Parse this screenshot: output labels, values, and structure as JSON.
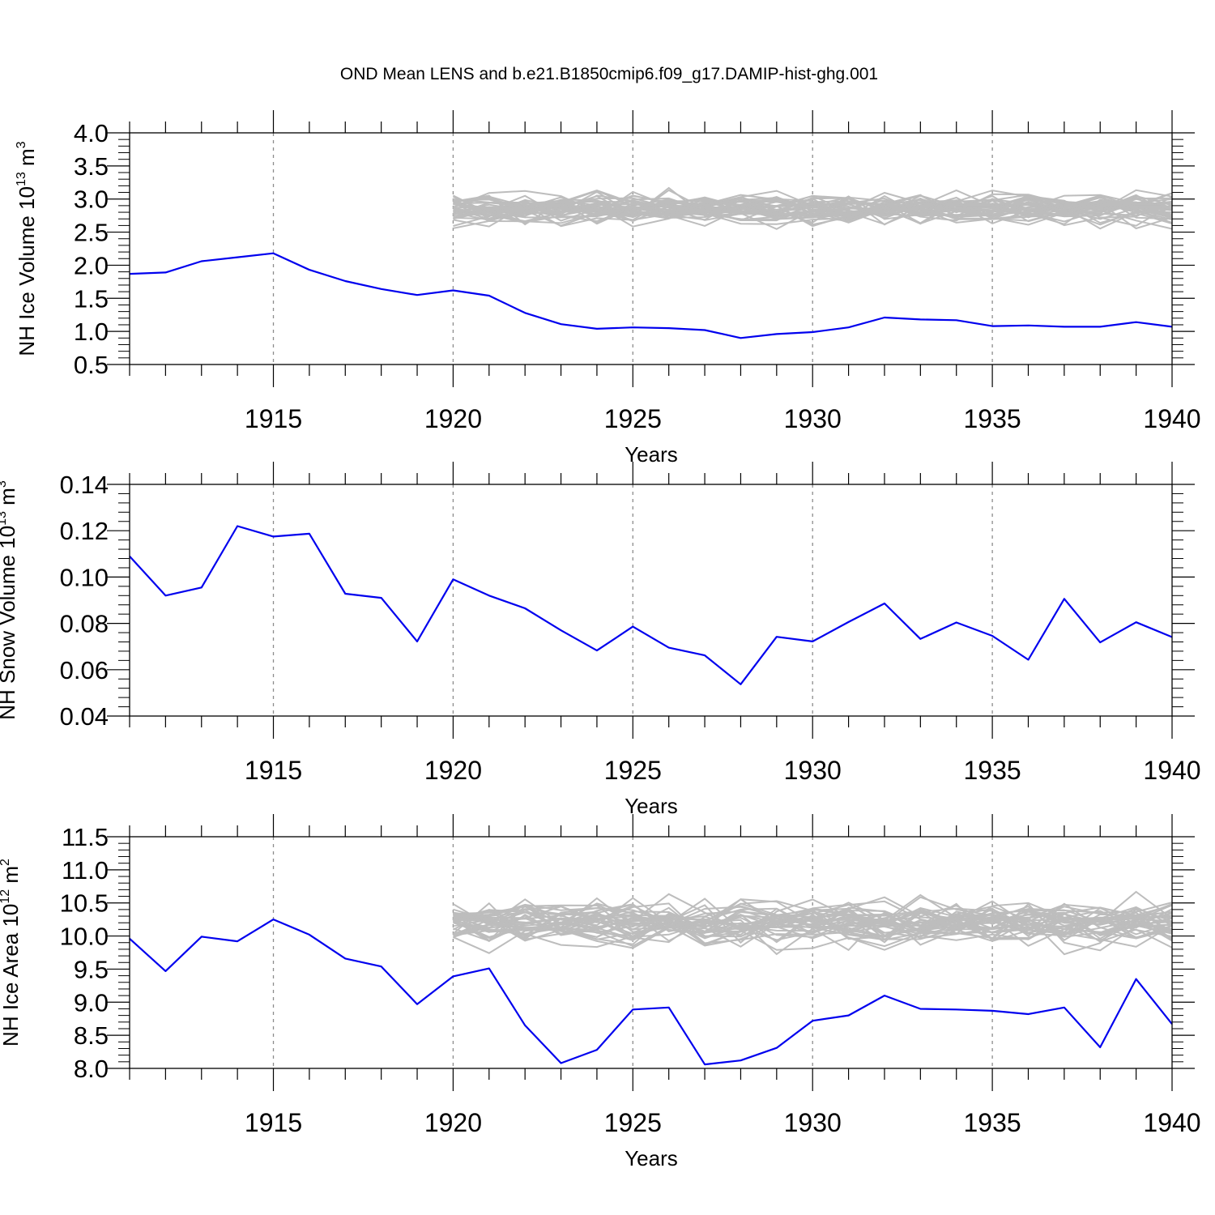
{
  "title": "OND Mean LENS and b.e21.B1850cmip6.f09_g17.DAMIP-hist-ghg.001",
  "colors": {
    "main_series": "#0000ee",
    "ensemble": "#bdbdbd",
    "frame": "#000000",
    "gridline": "#8c8c8c"
  },
  "chart_data": [
    {
      "type": "line",
      "title": "OND Mean LENS and b.e21.B1850cmip6.f09_g17.DAMIP-hist-ghg.001",
      "ylabel": {
        "text": "NH Ice Volume 10",
        "sup1": "13",
        "mid": " m",
        "sup2": "3"
      },
      "xlabel": "Years",
      "xlim": [
        1911,
        1940
      ],
      "ylim": [
        0.5,
        4.0
      ],
      "yticks": [
        0.5,
        1.0,
        1.5,
        2.0,
        2.5,
        3.0,
        3.5,
        4.0
      ],
      "ytick_labels": [
        "0.5",
        "1.0",
        "1.5",
        "2.0",
        "2.5",
        "3.0",
        "3.5",
        "4.0"
      ],
      "xticks": [
        1915,
        1920,
        1925,
        1930,
        1935,
        1940
      ],
      "xtick_labels": [
        "1915",
        "1920",
        "1925",
        "1930",
        "1935",
        "1940"
      ],
      "vertical_gridlines": [
        1915,
        1920,
        1925,
        1930,
        1935
      ],
      "ensemble_start": 1920,
      "ensemble_members": 40,
      "ensemble_mean": 2.85,
      "ensemble_spread": 0.2,
      "series": [
        {
          "name": "b.e21.B1850cmip6.f09_g17.DAMIP-hist-ghg.001",
          "x": [
            1911,
            1912,
            1913,
            1914,
            1915,
            1916,
            1917,
            1918,
            1919,
            1920,
            1921,
            1922,
            1923,
            1924,
            1925,
            1926,
            1927,
            1928,
            1929,
            1930,
            1931,
            1932,
            1933,
            1934,
            1935,
            1936,
            1937,
            1938,
            1939,
            1940
          ],
          "values": [
            1.87,
            1.89,
            2.06,
            2.12,
            2.18,
            1.93,
            1.76,
            1.64,
            1.55,
            1.62,
            1.54,
            1.28,
            1.11,
            1.04,
            1.06,
            1.05,
            1.02,
            0.9,
            0.96,
            0.99,
            1.06,
            1.21,
            1.18,
            1.17,
            1.08,
            1.09,
            1.07,
            1.07,
            1.14,
            1.07
          ]
        }
      ]
    },
    {
      "type": "line",
      "ylabel": {
        "text": "NH Snow Volume 10",
        "sup1": "13",
        "mid": " m",
        "sup2": "3"
      },
      "xlabel": "Years",
      "xlim": [
        1911,
        1940
      ],
      "ylim": [
        0.04,
        0.14
      ],
      "yticks": [
        0.04,
        0.06,
        0.08,
        0.1,
        0.12,
        0.14
      ],
      "ytick_labels": [
        "0.04",
        "0.06",
        "0.08",
        "0.10",
        "0.12",
        "0.14"
      ],
      "xticks": [
        1915,
        1920,
        1925,
        1930,
        1935,
        1940
      ],
      "xtick_labels": [
        "1915",
        "1920",
        "1925",
        "1930",
        "1935",
        "1940"
      ],
      "vertical_gridlines": [
        1915,
        1920,
        1925,
        1930,
        1935
      ],
      "series": [
        {
          "name": "b.e21.B1850cmip6.f09_g17.DAMIP-hist-ghg.001",
          "x": [
            1911,
            1912,
            1913,
            1914,
            1915,
            1916,
            1917,
            1918,
            1919,
            1920,
            1921,
            1922,
            1923,
            1924,
            1925,
            1926,
            1927,
            1928,
            1929,
            1930,
            1931,
            1932,
            1933,
            1934,
            1935,
            1936,
            1937,
            1938,
            1939,
            1940
          ],
          "values": [
            0.109,
            0.092,
            0.0955,
            0.122,
            0.1175,
            0.1187,
            0.0928,
            0.091,
            0.0722,
            0.099,
            0.092,
            0.0865,
            0.077,
            0.0683,
            0.0786,
            0.0695,
            0.0662,
            0.0537,
            0.0742,
            0.0722,
            0.0806,
            0.0886,
            0.0733,
            0.0804,
            0.0746,
            0.0643,
            0.0906,
            0.0718,
            0.0805,
            0.0741
          ]
        }
      ]
    },
    {
      "type": "line",
      "ylabel": {
        "text": "NH Ice Area 10",
        "sup1": "12",
        "mid": " m",
        "sup2": "2"
      },
      "xlabel": "Years",
      "xlim": [
        1911,
        1940
      ],
      "ylim": [
        8.0,
        11.5
      ],
      "yticks": [
        8.0,
        8.5,
        9.0,
        9.5,
        10.0,
        10.5,
        11.0,
        11.5
      ],
      "ytick_labels": [
        "8.0",
        "8.5",
        "9.0",
        "9.5",
        "10.0",
        "10.5",
        "11.0",
        "11.5"
      ],
      "xticks": [
        1915,
        1920,
        1925,
        1930,
        1935,
        1940
      ],
      "xtick_labels": [
        "1915",
        "1920",
        "1925",
        "1930",
        "1935",
        "1940"
      ],
      "vertical_gridlines": [
        1915,
        1920,
        1925,
        1930,
        1935
      ],
      "ensemble_start": 1920,
      "ensemble_members": 40,
      "ensemble_mean": 10.2,
      "ensemble_spread": 0.28,
      "series": [
        {
          "name": "b.e21.B1850cmip6.f09_g17.DAMIP-hist-ghg.001",
          "x": [
            1911,
            1912,
            1913,
            1914,
            1915,
            1916,
            1917,
            1918,
            1919,
            1920,
            1921,
            1922,
            1923,
            1924,
            1925,
            1926,
            1927,
            1928,
            1929,
            1930,
            1931,
            1932,
            1933,
            1934,
            1935,
            1936,
            1937,
            1938,
            1939,
            1940
          ],
          "values": [
            9.96,
            9.47,
            9.99,
            9.92,
            10.25,
            10.02,
            9.66,
            9.54,
            8.97,
            9.39,
            9.51,
            8.65,
            8.08,
            8.28,
            8.89,
            8.92,
            8.06,
            8.12,
            8.31,
            8.72,
            8.8,
            9.1,
            8.9,
            8.89,
            8.87,
            8.82,
            8.92,
            8.32,
            9.35,
            8.67
          ]
        }
      ]
    }
  ]
}
